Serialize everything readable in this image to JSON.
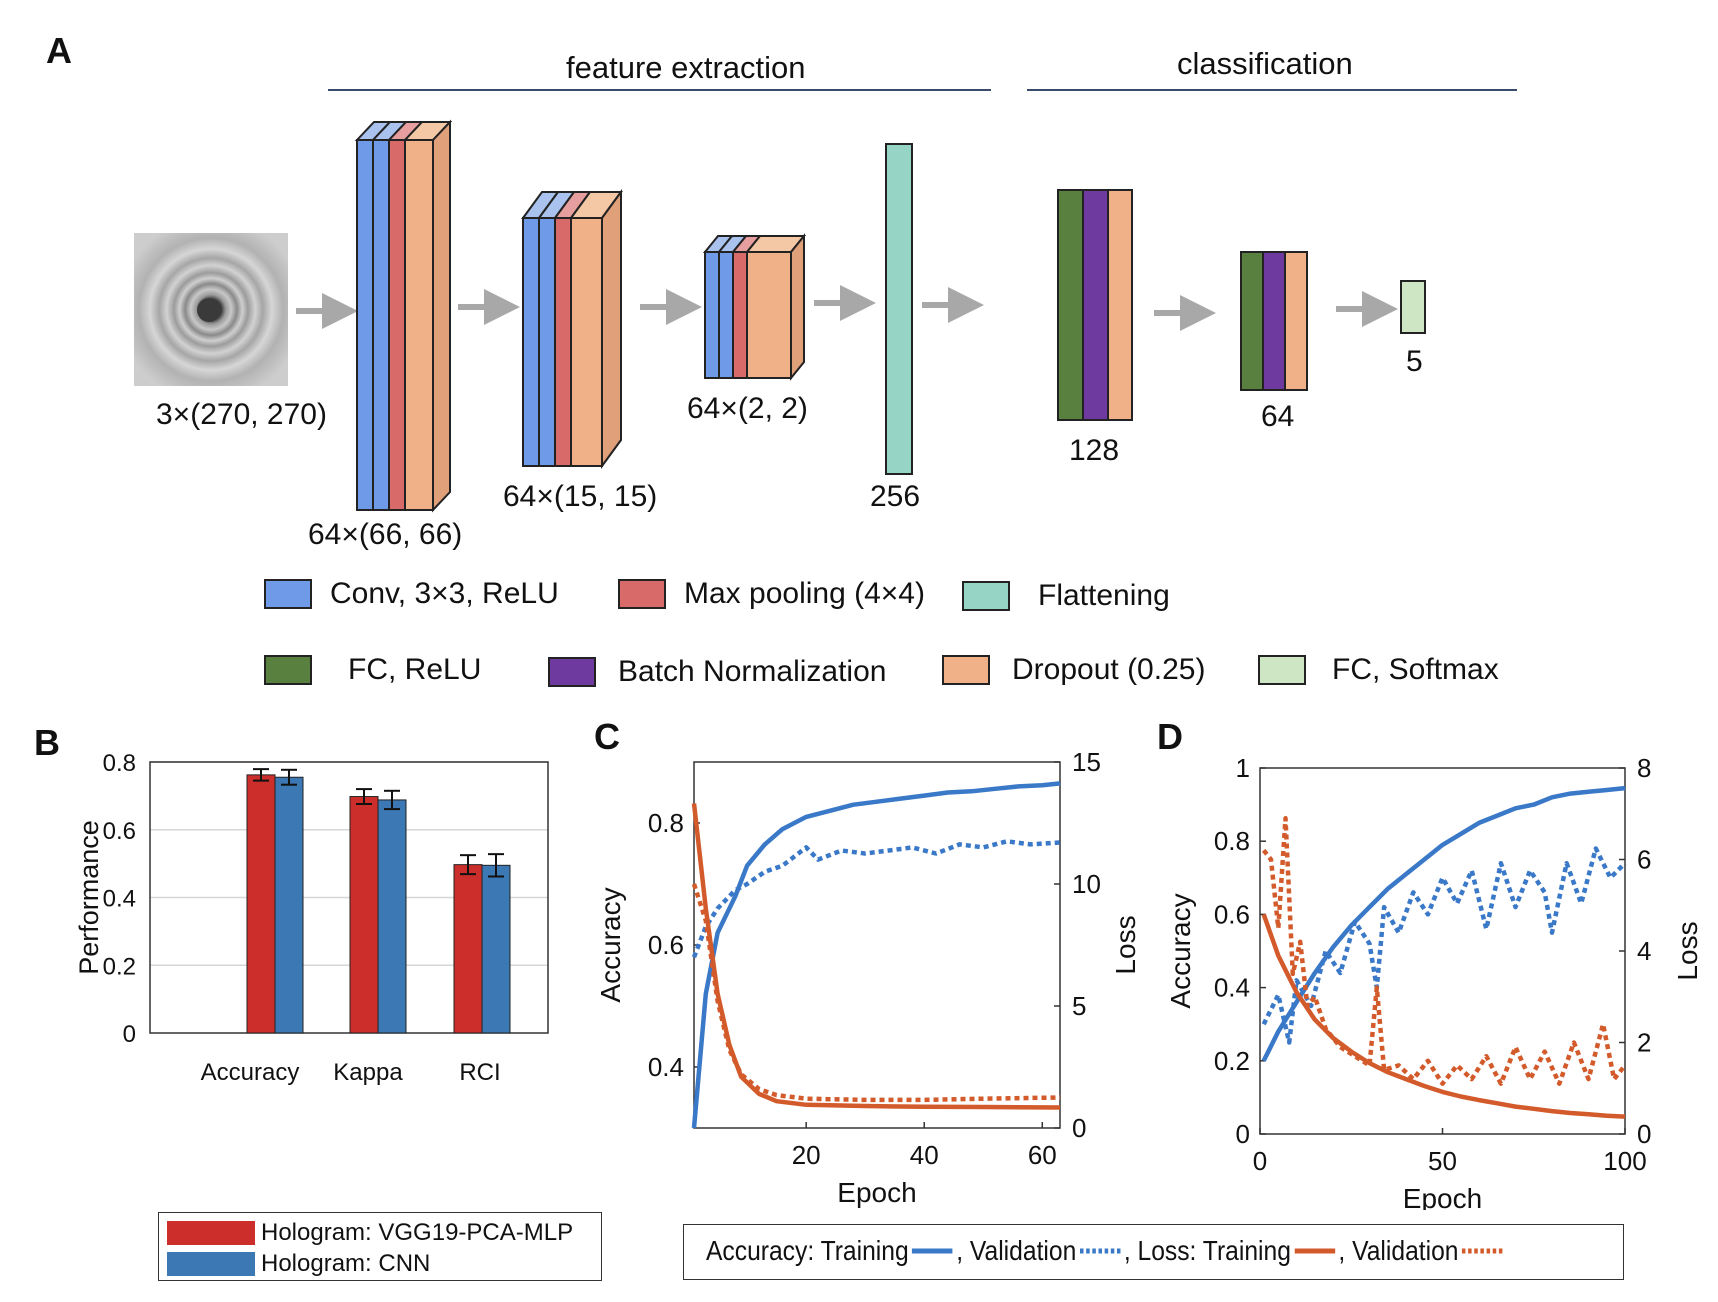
{
  "panel_a": {
    "letter": "A",
    "sections": {
      "feature_extraction": "feature extraction",
      "classification": "classification"
    },
    "dims": {
      "input": "3×(270, 270)",
      "conv1": "64×(66, 66)",
      "conv2": "64×(15, 15)",
      "conv3": "64×(2, 2)",
      "flatten": "256",
      "fc1": "128",
      "fc2": "64",
      "out": "5"
    },
    "legend": [
      {
        "label": "Conv, 3×3, ReLU",
        "color": "#6f9ae8"
      },
      {
        "label": "Max pooling (4×4)",
        "color": "#d86a6a"
      },
      {
        "label": "Flattening",
        "color": "#96d4c6"
      },
      {
        "label": "FC, ReLU",
        "color": "#5a8040"
      },
      {
        "label": "Batch Normalization",
        "color": "#6e3aa0"
      },
      {
        "label": "Dropout (0.25)",
        "color": "#f0b088"
      },
      {
        "label": "FC, Softmax",
        "color": "#cfe6c4"
      }
    ]
  },
  "panel_b": {
    "letter": "B",
    "chart_data": {
      "type": "bar",
      "categories": [
        "Accuracy",
        "Kappa",
        "RCI"
      ],
      "series": [
        {
          "name": "Hologram: VGG19-PCA-MLP",
          "color": "#cc2e2b",
          "values": [
            0.762,
            0.698,
            0.497
          ],
          "errors": [
            0.017,
            0.022,
            0.028
          ]
        },
        {
          "name": "Hologram: CNN",
          "color": "#3b78b4",
          "values": [
            0.755,
            0.688,
            0.495
          ],
          "errors": [
            0.022,
            0.027,
            0.033
          ]
        }
      ],
      "ylabel": "Performance",
      "ylim": [
        0,
        0.8
      ],
      "yticks": [
        "0",
        "0.2",
        "0.4",
        "0.6",
        "0.8"
      ],
      "grid": true
    }
  },
  "panel_c": {
    "letter": "C",
    "chart_data": {
      "type": "line",
      "xlabel": "Epoch",
      "ylabel_left": "Accuracy",
      "ylabel_right": "Loss",
      "xlim": [
        1,
        63
      ],
      "ylim_left": [
        0.3,
        0.9
      ],
      "ylim_right": [
        0,
        15
      ],
      "xticks": [
        "20",
        "40",
        "60"
      ],
      "yticks_left": [
        "0.4",
        "0.6",
        "0.8"
      ],
      "yticks_right": [
        "0",
        "5",
        "10",
        "15"
      ],
      "series": [
        {
          "name": "Accuracy: Training",
          "axis": "left",
          "style": "solid",
          "color": "#3a78c8",
          "points": [
            [
              1,
              0.3
            ],
            [
              3,
              0.52
            ],
            [
              5,
              0.62
            ],
            [
              8,
              0.68
            ],
            [
              10,
              0.73
            ],
            [
              13,
              0.765
            ],
            [
              16,
              0.79
            ],
            [
              20,
              0.81
            ],
            [
              24,
              0.82
            ],
            [
              28,
              0.83
            ],
            [
              32,
              0.835
            ],
            [
              36,
              0.84
            ],
            [
              40,
              0.845
            ],
            [
              44,
              0.85
            ],
            [
              48,
              0.852
            ],
            [
              52,
              0.856
            ],
            [
              56,
              0.86
            ],
            [
              60,
              0.862
            ],
            [
              63,
              0.865
            ]
          ]
        },
        {
          "name": "Accuracy: Validation",
          "axis": "left",
          "style": "dotted",
          "color": "#3a78c8",
          "points": [
            [
              1,
              0.58
            ],
            [
              3,
              0.63
            ],
            [
              5,
              0.66
            ],
            [
              8,
              0.69
            ],
            [
              10,
              0.7
            ],
            [
              13,
              0.72
            ],
            [
              16,
              0.73
            ],
            [
              20,
              0.76
            ],
            [
              22,
              0.74
            ],
            [
              26,
              0.755
            ],
            [
              30,
              0.75
            ],
            [
              34,
              0.755
            ],
            [
              38,
              0.76
            ],
            [
              42,
              0.75
            ],
            [
              46,
              0.765
            ],
            [
              50,
              0.76
            ],
            [
              54,
              0.77
            ],
            [
              58,
              0.765
            ],
            [
              63,
              0.768
            ]
          ]
        },
        {
          "name": "Loss: Training",
          "axis": "right",
          "style": "solid",
          "color": "#d35a2a",
          "points": [
            [
              1,
              13.3
            ],
            [
              3,
              9.0
            ],
            [
              5,
              5.5
            ],
            [
              7,
              3.4
            ],
            [
              9,
              2.1
            ],
            [
              12,
              1.4
            ],
            [
              15,
              1.1
            ],
            [
              20,
              0.95
            ],
            [
              30,
              0.9
            ],
            [
              40,
              0.87
            ],
            [
              50,
              0.86
            ],
            [
              63,
              0.84
            ]
          ]
        },
        {
          "name": "Loss: Validation",
          "axis": "right",
          "style": "dotted",
          "color": "#d35a2a",
          "points": [
            [
              1,
              10.0
            ],
            [
              3,
              8.5
            ],
            [
              5,
              5.2
            ],
            [
              7,
              3.2
            ],
            [
              9,
              2.2
            ],
            [
              12,
              1.6
            ],
            [
              15,
              1.35
            ],
            [
              20,
              1.2
            ],
            [
              30,
              1.15
            ],
            [
              40,
              1.15
            ],
            [
              50,
              1.2
            ],
            [
              63,
              1.25
            ]
          ]
        }
      ]
    }
  },
  "panel_d": {
    "letter": "D",
    "chart_data": {
      "type": "line",
      "xlabel": "Epoch",
      "ylabel_left": "Accuracy",
      "ylabel_right": "Loss",
      "xlim": [
        0,
        100
      ],
      "ylim_left": [
        0,
        1
      ],
      "ylim_right": [
        0,
        8
      ],
      "xticks": [
        "0",
        "50",
        "100"
      ],
      "yticks_left": [
        "0",
        "0.2",
        "0.4",
        "0.6",
        "0.8",
        "1"
      ],
      "yticks_right": [
        "0",
        "2",
        "4",
        "6",
        "8"
      ],
      "series": [
        {
          "name": "Accuracy: Training",
          "axis": "left",
          "style": "solid",
          "color": "#3a78c8",
          "points": [
            [
              1,
              0.2
            ],
            [
              5,
              0.28
            ],
            [
              10,
              0.36
            ],
            [
              15,
              0.44
            ],
            [
              20,
              0.51
            ],
            [
              25,
              0.57
            ],
            [
              30,
              0.62
            ],
            [
              35,
              0.67
            ],
            [
              40,
              0.71
            ],
            [
              45,
              0.75
            ],
            [
              50,
              0.79
            ],
            [
              55,
              0.82
            ],
            [
              60,
              0.85
            ],
            [
              65,
              0.87
            ],
            [
              70,
              0.89
            ],
            [
              75,
              0.9
            ],
            [
              80,
              0.92
            ],
            [
              85,
              0.93
            ],
            [
              90,
              0.935
            ],
            [
              95,
              0.94
            ],
            [
              100,
              0.945
            ]
          ]
        },
        {
          "name": "Accuracy: Validation",
          "axis": "left",
          "style": "dotted",
          "color": "#3a78c8",
          "points": [
            [
              1,
              0.3
            ],
            [
              5,
              0.38
            ],
            [
              8,
              0.25
            ],
            [
              10,
              0.42
            ],
            [
              14,
              0.35
            ],
            [
              18,
              0.5
            ],
            [
              22,
              0.44
            ],
            [
              26,
              0.58
            ],
            [
              30,
              0.52
            ],
            [
              32,
              0.4
            ],
            [
              34,
              0.62
            ],
            [
              38,
              0.55
            ],
            [
              42,
              0.66
            ],
            [
              46,
              0.6
            ],
            [
              50,
              0.7
            ],
            [
              54,
              0.63
            ],
            [
              58,
              0.72
            ],
            [
              62,
              0.56
            ],
            [
              66,
              0.74
            ],
            [
              70,
              0.62
            ],
            [
              74,
              0.72
            ],
            [
              78,
              0.66
            ],
            [
              80,
              0.55
            ],
            [
              84,
              0.74
            ],
            [
              88,
              0.63
            ],
            [
              92,
              0.78
            ],
            [
              96,
              0.7
            ],
            [
              100,
              0.74
            ]
          ]
        },
        {
          "name": "Loss: Training",
          "axis": "right",
          "style": "solid",
          "color": "#d35a2a",
          "points": [
            [
              1,
              4.8
            ],
            [
              5,
              3.9
            ],
            [
              10,
              3.1
            ],
            [
              15,
              2.5
            ],
            [
              20,
              2.1
            ],
            [
              25,
              1.8
            ],
            [
              30,
              1.55
            ],
            [
              35,
              1.35
            ],
            [
              40,
              1.2
            ],
            [
              45,
              1.05
            ],
            [
              50,
              0.92
            ],
            [
              55,
              0.82
            ],
            [
              60,
              0.74
            ],
            [
              65,
              0.67
            ],
            [
              70,
              0.6
            ],
            [
              75,
              0.55
            ],
            [
              80,
              0.5
            ],
            [
              85,
              0.46
            ],
            [
              90,
              0.43
            ],
            [
              95,
              0.4
            ],
            [
              100,
              0.38
            ]
          ]
        },
        {
          "name": "Loss: Validation",
          "axis": "right",
          "style": "dotted",
          "color": "#d35a2a",
          "points": [
            [
              1,
              6.2
            ],
            [
              3,
              6.0
            ],
            [
              5,
              4.5
            ],
            [
              7,
              6.9
            ],
            [
              9,
              3.5
            ],
            [
              11,
              4.2
            ],
            [
              13,
              2.8
            ],
            [
              15,
              3.0
            ],
            [
              18,
              2.3
            ],
            [
              22,
              1.9
            ],
            [
              26,
              1.7
            ],
            [
              30,
              1.5
            ],
            [
              32,
              3.2
            ],
            [
              34,
              1.4
            ],
            [
              38,
              1.5
            ],
            [
              42,
              1.2
            ],
            [
              46,
              1.6
            ],
            [
              50,
              1.1
            ],
            [
              54,
              1.5
            ],
            [
              58,
              1.2
            ],
            [
              62,
              1.7
            ],
            [
              66,
              1.1
            ],
            [
              70,
              1.9
            ],
            [
              74,
              1.2
            ],
            [
              78,
              1.8
            ],
            [
              82,
              1.1
            ],
            [
              86,
              2.0
            ],
            [
              90,
              1.2
            ],
            [
              94,
              2.4
            ],
            [
              97,
              1.2
            ],
            [
              100,
              1.5
            ]
          ]
        }
      ]
    }
  },
  "legend_b": [
    {
      "label": "Hologram: VGG19-PCA-MLP",
      "color": "#cc2e2b"
    },
    {
      "label": "Hologram: CNN",
      "color": "#3b78b4"
    }
  ],
  "legend_cd": {
    "accuracy_prefix": "Accuracy: Training",
    "accuracy_validation": ", Validation",
    "loss_prefix": ", Loss: Training",
    "loss_validation": ", Validation"
  }
}
